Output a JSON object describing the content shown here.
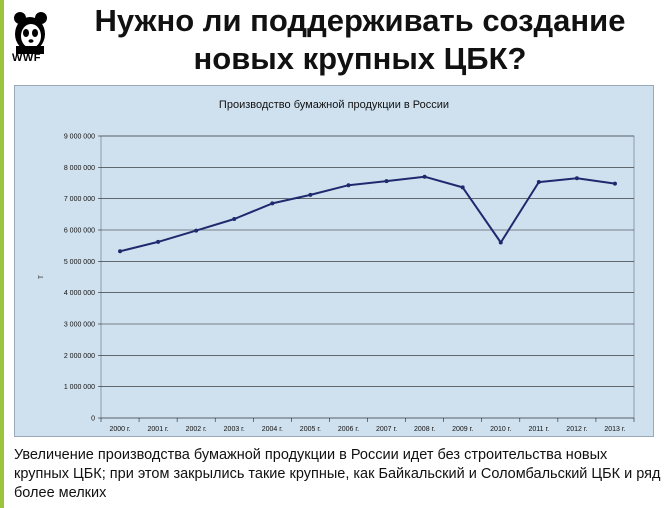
{
  "slide": {
    "title": "Нужно ли поддерживать создание новых крупных ЦБК?",
    "logo_text": "WWF",
    "caption": "Увеличение производства бумажной продукции в России идет без строительства новых крупных ЦБК; при этом закрылись такие крупные, как Байкальский и Соломбальский ЦБК и ряд более мелких"
  },
  "colors": {
    "chart_bg": "#cfe1ef",
    "line": "#1f2a6e",
    "accent": "#9bc53d"
  },
  "chart_data": {
    "type": "line",
    "title": "Производство бумажной продукции в России",
    "ylabel": "т",
    "xlabel": "",
    "categories": [
      "2000 г.",
      "2001 г.",
      "2002 г.",
      "2003 г.",
      "2004 г.",
      "2005 г.",
      "2006 г.",
      "2007 г.",
      "2008 г.",
      "2009 г.",
      "2010 г.",
      "2011 г.",
      "2012 г.",
      "2013 г."
    ],
    "values": [
      5320000,
      5620000,
      5980000,
      6350000,
      6850000,
      7120000,
      7430000,
      7560000,
      7700000,
      7360000,
      5600000,
      7530000,
      7650000,
      7480000
    ],
    "ylim": [
      0,
      9000000
    ],
    "yticks": [
      0,
      1000000,
      2000000,
      3000000,
      4000000,
      5000000,
      6000000,
      7000000,
      8000000,
      9000000
    ],
    "ytick_labels": [
      "0",
      "1 000 000",
      "2 000 000",
      "3 000 000",
      "4 000 000",
      "5 000 000",
      "6 000 000",
      "7 000 000",
      "8 000 000",
      "9 000 000"
    ],
    "grid": true,
    "legend": "none"
  }
}
